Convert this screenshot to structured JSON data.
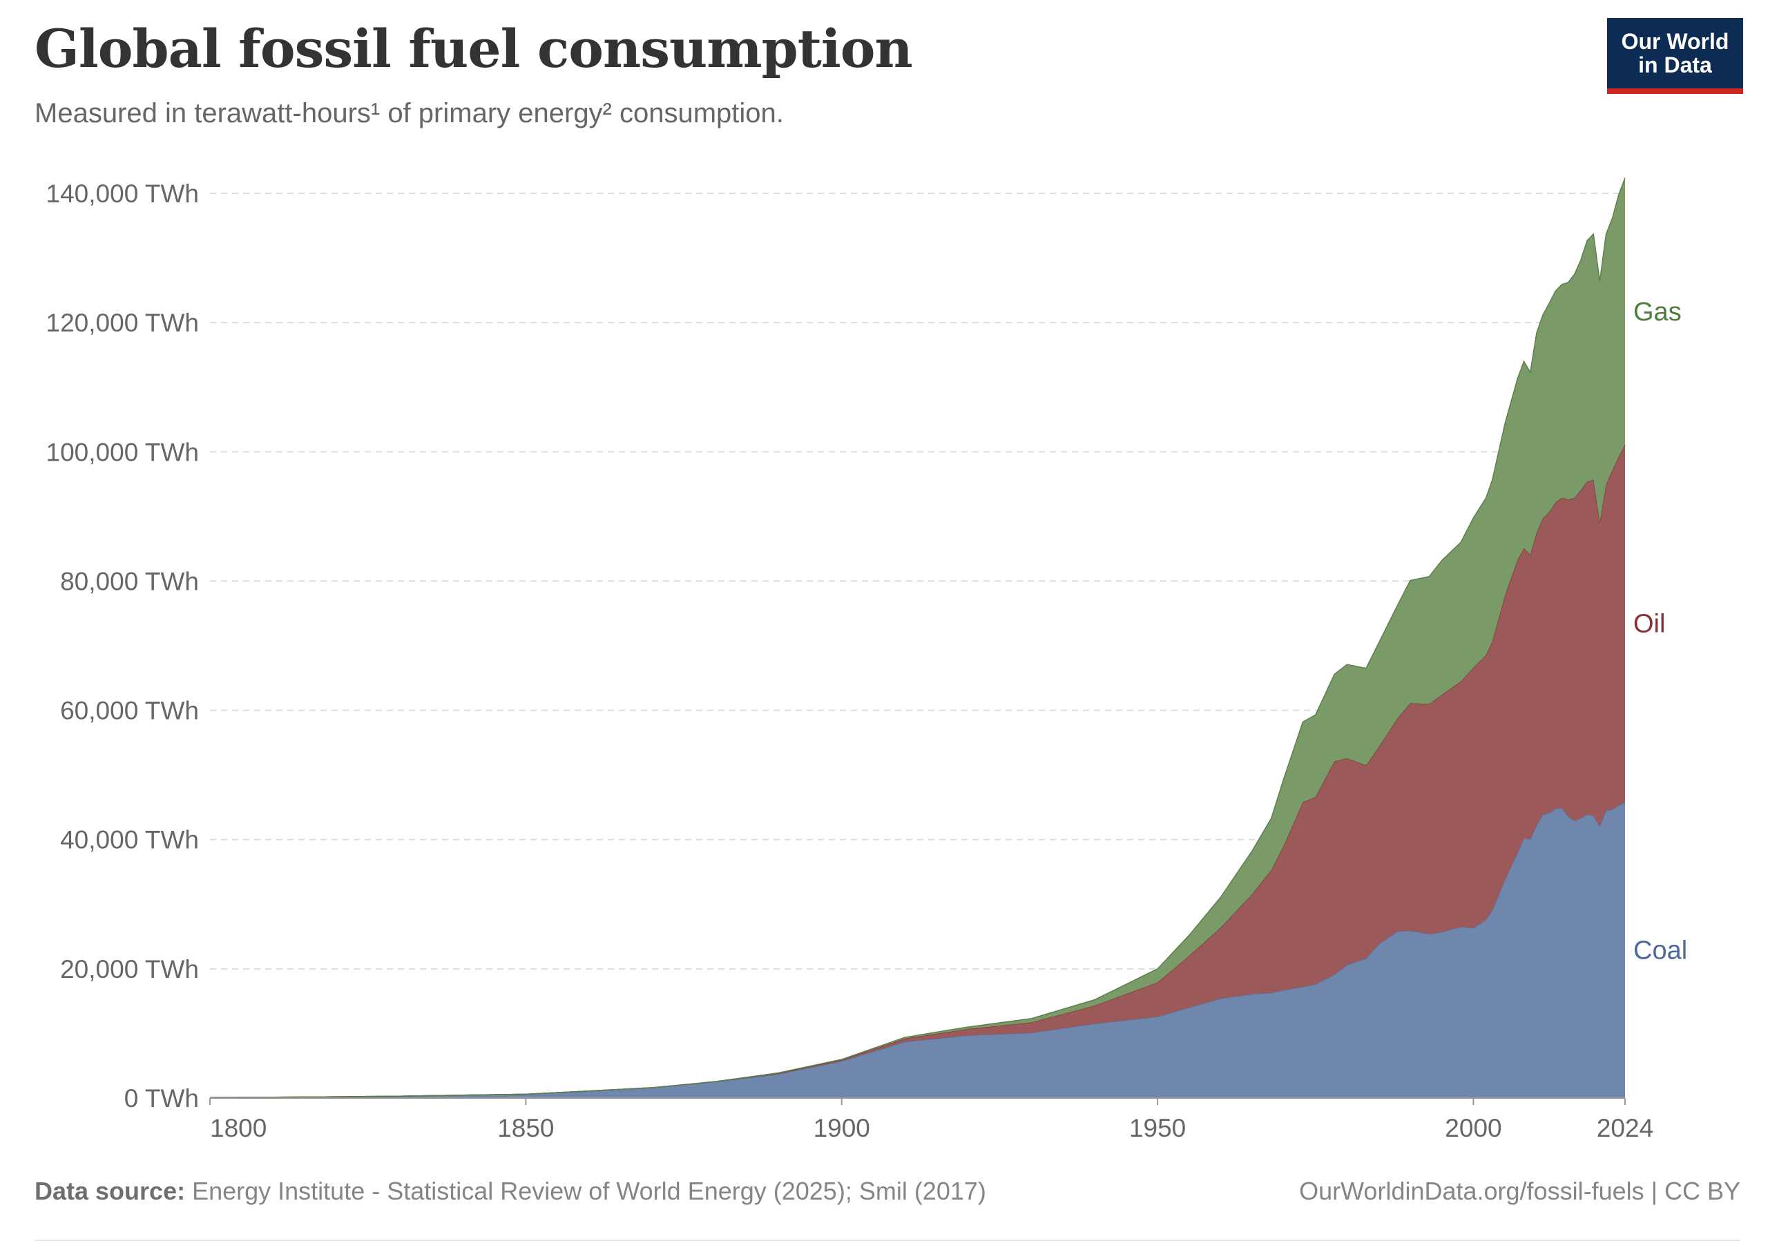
{
  "header": {
    "title": "Global fossil fuel consumption",
    "subtitle": "Measured in terawatt-hours¹ of primary energy² consumption.",
    "logo_line1": "Our World",
    "logo_line2": "in Data"
  },
  "footer": {
    "source_label": "Data source:",
    "source_text": " Energy Institute - Statistical Review of World Energy (2025); Smil (2017)",
    "credit": "OurWorldinData.org/fossil-fuels | CC BY"
  },
  "colors": {
    "coal": "#6f87ad",
    "oil": "#9c5959",
    "gas": "#7a9b68",
    "coal_line": "#5a729a",
    "oil_line": "#7d3b3b",
    "gas_line": "#5b7f4a",
    "coal_label": "#4c6a9c",
    "oil_label": "#883039",
    "gas_label": "#4e7d3e"
  },
  "chart_data": {
    "type": "area",
    "stacked": true,
    "title": "Global fossil fuel consumption",
    "xlabel": "",
    "ylabel": "",
    "xlim": [
      1800,
      2024
    ],
    "ylim": [
      0,
      140000
    ],
    "x_ticks": [
      {
        "value": 1800,
        "label": "1800"
      },
      {
        "value": 1850,
        "label": "1850"
      },
      {
        "value": 1900,
        "label": "1900"
      },
      {
        "value": 1950,
        "label": "1950"
      },
      {
        "value": 2000,
        "label": "2000"
      },
      {
        "value": 2024,
        "label": "2024"
      }
    ],
    "y_ticks": [
      {
        "value": 0,
        "label": "0 TWh"
      },
      {
        "value": 20000,
        "label": "20,000 TWh"
      },
      {
        "value": 40000,
        "label": "40,000 TWh"
      },
      {
        "value": 60000,
        "label": "60,000 TWh"
      },
      {
        "value": 80000,
        "label": "80,000 TWh"
      },
      {
        "value": 100000,
        "label": "100,000 TWh"
      },
      {
        "value": 120000,
        "label": "120,000 TWh"
      },
      {
        "value": 140000,
        "label": "140,000 TWh"
      }
    ],
    "grid": "horizontal dashed",
    "legend": "right, inline labels",
    "series": [
      {
        "name": "Coal",
        "points": [
          [
            1800,
            100
          ],
          [
            1810,
            130
          ],
          [
            1820,
            200
          ],
          [
            1830,
            300
          ],
          [
            1840,
            450
          ],
          [
            1850,
            600
          ],
          [
            1860,
            1100
          ],
          [
            1870,
            1600
          ],
          [
            1880,
            2500
          ],
          [
            1890,
            3700
          ],
          [
            1900,
            5700
          ],
          [
            1910,
            8700
          ],
          [
            1920,
            9700
          ],
          [
            1930,
            10100
          ],
          [
            1940,
            11500
          ],
          [
            1950,
            12600
          ],
          [
            1955,
            14000
          ],
          [
            1960,
            15400
          ],
          [
            1965,
            16100
          ],
          [
            1968,
            16300
          ],
          [
            1970,
            16700
          ],
          [
            1973,
            17200
          ],
          [
            1975,
            17600
          ],
          [
            1978,
            19100
          ],
          [
            1980,
            20600
          ],
          [
            1983,
            21600
          ],
          [
            1985,
            23800
          ],
          [
            1988,
            25800
          ],
          [
            1990,
            25900
          ],
          [
            1993,
            25400
          ],
          [
            1995,
            25700
          ],
          [
            1998,
            26500
          ],
          [
            2000,
            26300
          ],
          [
            2002,
            27600
          ],
          [
            2003,
            29100
          ],
          [
            2005,
            33800
          ],
          [
            2007,
            38000
          ],
          [
            2008,
            40200
          ],
          [
            2009,
            40100
          ],
          [
            2010,
            42200
          ],
          [
            2011,
            43900
          ],
          [
            2012,
            44100
          ],
          [
            2013,
            44800
          ],
          [
            2014,
            44900
          ],
          [
            2015,
            43600
          ],
          [
            2016,
            42900
          ],
          [
            2017,
            43300
          ],
          [
            2018,
            43900
          ],
          [
            2019,
            43700
          ],
          [
            2020,
            42100
          ],
          [
            2021,
            44500
          ],
          [
            2022,
            44700
          ],
          [
            2023,
            45300
          ],
          [
            2024,
            45800
          ]
        ]
      },
      {
        "name": "Oil",
        "points": [
          [
            1800,
            0
          ],
          [
            1860,
            0
          ],
          [
            1870,
            10
          ],
          [
            1880,
            50
          ],
          [
            1890,
            150
          ],
          [
            1900,
            200
          ],
          [
            1910,
            500
          ],
          [
            1920,
            1000
          ],
          [
            1930,
            1600
          ],
          [
            1940,
            2800
          ],
          [
            1950,
            5300
          ],
          [
            1955,
            8000
          ],
          [
            1960,
            11000
          ],
          [
            1965,
            15500
          ],
          [
            1968,
            19000
          ],
          [
            1970,
            22400
          ],
          [
            1973,
            28600
          ],
          [
            1975,
            29000
          ],
          [
            1978,
            33000
          ],
          [
            1980,
            32000
          ],
          [
            1983,
            29900
          ],
          [
            1985,
            30500
          ],
          [
            1988,
            33000
          ],
          [
            1990,
            35200
          ],
          [
            1993,
            35600
          ],
          [
            1995,
            36700
          ],
          [
            1998,
            38000
          ],
          [
            2000,
            40300
          ],
          [
            2002,
            41000
          ],
          [
            2003,
            41600
          ],
          [
            2005,
            44000
          ],
          [
            2007,
            45300
          ],
          [
            2008,
            44900
          ],
          [
            2009,
            44000
          ],
          [
            2010,
            45300
          ],
          [
            2011,
            45800
          ],
          [
            2012,
            46600
          ],
          [
            2013,
            47400
          ],
          [
            2014,
            48000
          ],
          [
            2015,
            49000
          ],
          [
            2016,
            50000
          ],
          [
            2017,
            50800
          ],
          [
            2018,
            51500
          ],
          [
            2019,
            52000
          ],
          [
            2020,
            47000
          ],
          [
            2021,
            50500
          ],
          [
            2022,
            52500
          ],
          [
            2023,
            54000
          ],
          [
            2024,
            55300
          ]
        ]
      },
      {
        "name": "Gas",
        "points": [
          [
            1800,
            0
          ],
          [
            1880,
            0
          ],
          [
            1885,
            20
          ],
          [
            1890,
            50
          ],
          [
            1900,
            80
          ],
          [
            1910,
            200
          ],
          [
            1920,
            300
          ],
          [
            1930,
            600
          ],
          [
            1940,
            900
          ],
          [
            1950,
            2100
          ],
          [
            1955,
            3200
          ],
          [
            1960,
            4700
          ],
          [
            1965,
            6700
          ],
          [
            1968,
            8000
          ],
          [
            1970,
            10400
          ],
          [
            1973,
            12400
          ],
          [
            1975,
            12700
          ],
          [
            1978,
            13500
          ],
          [
            1980,
            14500
          ],
          [
            1983,
            15000
          ],
          [
            1985,
            16100
          ],
          [
            1988,
            17500
          ],
          [
            1990,
            19000
          ],
          [
            1993,
            19700
          ],
          [
            1995,
            20800
          ],
          [
            1998,
            21500
          ],
          [
            2000,
            23200
          ],
          [
            2002,
            24300
          ],
          [
            2003,
            25000
          ],
          [
            2005,
            26600
          ],
          [
            2007,
            28100
          ],
          [
            2008,
            28900
          ],
          [
            2009,
            28200
          ],
          [
            2010,
            30900
          ],
          [
            2011,
            31500
          ],
          [
            2012,
            32300
          ],
          [
            2013,
            32700
          ],
          [
            2014,
            33000
          ],
          [
            2015,
            33600
          ],
          [
            2016,
            34600
          ],
          [
            2017,
            35600
          ],
          [
            2018,
            37300
          ],
          [
            2019,
            38000
          ],
          [
            2020,
            37300
          ],
          [
            2021,
            38700
          ],
          [
            2022,
            39000
          ],
          [
            2023,
            40500
          ],
          [
            2024,
            41300
          ]
        ]
      }
    ]
  }
}
